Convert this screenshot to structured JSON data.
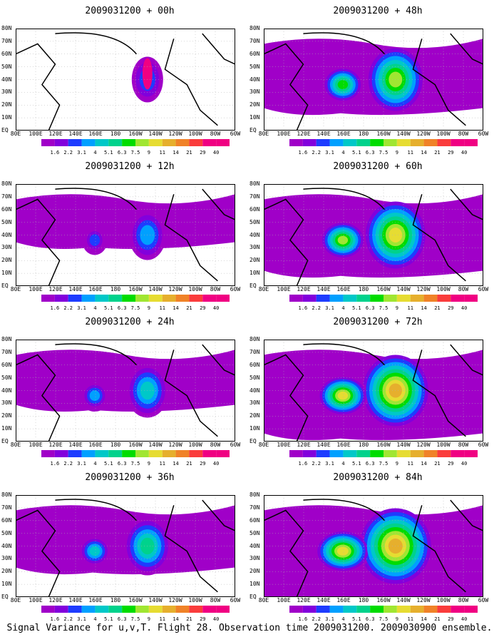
{
  "panels": [
    {
      "title": "2009031200 + 00h",
      "col": 0,
      "row": 0,
      "intensity": 0
    },
    {
      "title": "2009031200 + 48h",
      "col": 1,
      "row": 0,
      "intensity": 4
    },
    {
      "title": "2009031200 + 12h",
      "col": 0,
      "row": 1,
      "intensity": 1
    },
    {
      "title": "2009031200 + 60h",
      "col": 1,
      "row": 1,
      "intensity": 5
    },
    {
      "title": "2009031200 + 24h",
      "col": 0,
      "row": 2,
      "intensity": 2
    },
    {
      "title": "2009031200 + 72h",
      "col": 1,
      "row": 2,
      "intensity": 6
    },
    {
      "title": "2009031200 + 36h",
      "col": 0,
      "row": 3,
      "intensity": 3
    },
    {
      "title": "2009031200 + 84h",
      "col": 1,
      "row": 3,
      "intensity": 7
    }
  ],
  "x_ticks": [
    "80E",
    "100E",
    "120E",
    "140E",
    "160E",
    "180",
    "160W",
    "140W",
    "120W",
    "100W",
    "80W",
    "60W"
  ],
  "y_ticks": [
    "80N",
    "70N",
    "60N",
    "50N",
    "40N",
    "30N",
    "20N",
    "10N",
    "EQ"
  ],
  "colorbar": {
    "labels": [
      "1.6",
      "2.2",
      "3.1",
      "4",
      "5.1",
      "6.3",
      "7.5",
      "9",
      "11",
      "14",
      "21",
      "29",
      "40"
    ],
    "colors": [
      "#a000c8",
      "#8200dc",
      "#1e3cff",
      "#00a0ff",
      "#00c8c8",
      "#00d28c",
      "#00dc00",
      "#a0e632",
      "#e6dc32",
      "#e6af2d",
      "#f08228",
      "#fa3c3c",
      "#f00082"
    ]
  },
  "caption": "Signal Variance for u,v,T. Flight 28. Observation time 2009031200. 2009030900 ensemble."
}
